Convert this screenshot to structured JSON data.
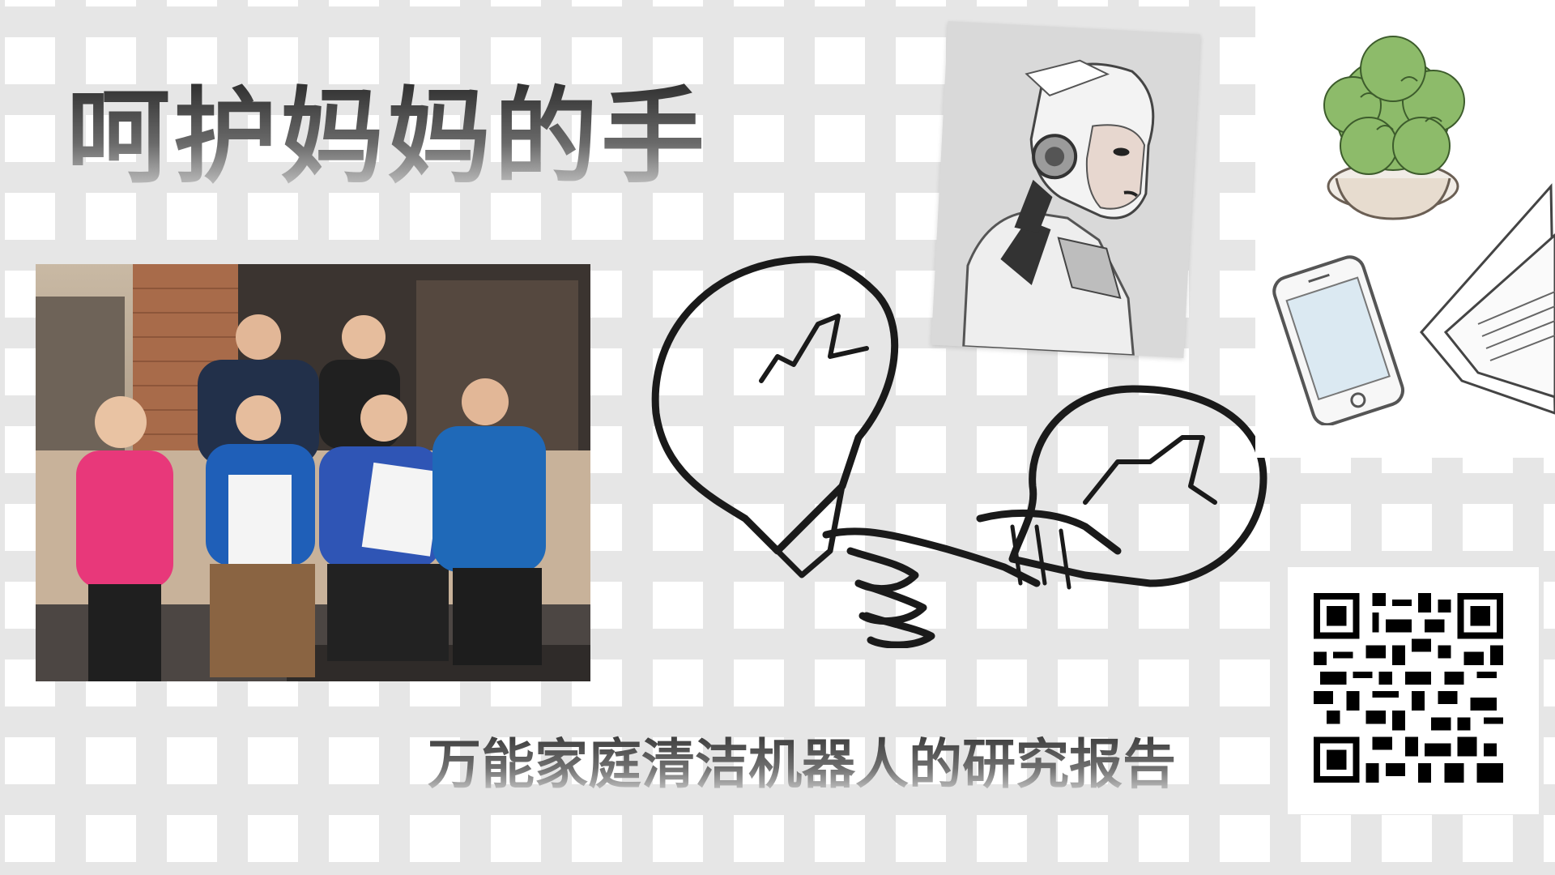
{
  "slide": {
    "title": "呵护妈妈的手",
    "subtitle": "万能家庭清洁机器人的研究报告"
  },
  "images": {
    "group_photo": "group-photo",
    "robot_portrait": "robot-portrait",
    "lightbulb_handshake": "lightbulb-handshake-sketch",
    "plant": "potted-plant-icon",
    "phone": "smartphone-icon",
    "papers": "papers-icon",
    "qr_code": "qr-code"
  },
  "colors": {
    "grid_bar": "#e6e6e6",
    "title_dark": "#2e2e2e",
    "title_light": "#cfcfcf",
    "plant_green": "#8dbb6a",
    "phone_screen": "#dbe9f2",
    "jacket_pink": "#e8387a",
    "jacket_blue": "#1f5fb8"
  }
}
